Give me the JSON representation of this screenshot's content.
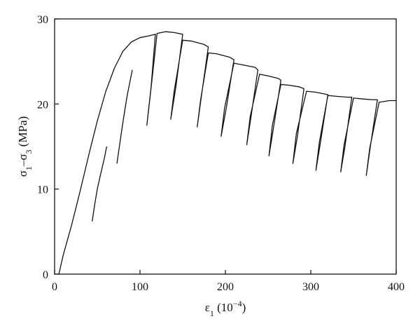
{
  "chart_data": {
    "type": "line",
    "title": "",
    "xlabel": "ε1 (10^-4)",
    "ylabel": "σ1–σ3 (MPa)",
    "xlabel_parts": {
      "main": "ε",
      "sub": "1",
      "unit_open": " (10",
      "sup": "−4",
      "unit_close": ")"
    },
    "ylabel_parts": {
      "a": "σ",
      "a_sub": "1",
      "dash": "–",
      "b": "σ",
      "b_sub": "3",
      "unit": " (MPa)"
    },
    "xlim": [
      0,
      400
    ],
    "ylim": [
      0,
      30
    ],
    "xticks": [
      0,
      100,
      200,
      300,
      400
    ],
    "yticks": [
      0,
      10,
      20,
      30
    ],
    "xtick_labels": [
      "0",
      "100",
      "200",
      "300",
      "400"
    ],
    "ytick_labels": [
      "0",
      "10",
      "20",
      "30"
    ],
    "grid": false,
    "legend": "none",
    "colors": {
      "line": "#111111",
      "axis": "#111111",
      "background": "#ffffff"
    },
    "series": [
      {
        "x": [
          5,
          10,
          20,
          30,
          40,
          50,
          60,
          70,
          80,
          90,
          100,
          110,
          118,
          118,
          113,
          108,
          112,
          120,
          130,
          140,
          150,
          150,
          142,
          136,
          140,
          150,
          160,
          175,
          180,
          180,
          172,
          167,
          171,
          180,
          190,
          205,
          210,
          210,
          201,
          195,
          199,
          210,
          220,
          235,
          238,
          238,
          230,
          225,
          229,
          240,
          250,
          262,
          265,
          265,
          256,
          251,
          255,
          265,
          275,
          287,
          292,
          292,
          284,
          279,
          283,
          295,
          305,
          315,
          320,
          320,
          311,
          306,
          310,
          320,
          330,
          343,
          348,
          348,
          340,
          335,
          339,
          350,
          360,
          372,
          378,
          378,
          369,
          365,
          369,
          380,
          392,
          400
        ],
        "y": [
          0,
          2.2,
          5.8,
          9.8,
          14,
          18,
          21.5,
          24.2,
          26.2,
          27.3,
          27.8,
          28,
          28.2,
          28.2,
          22,
          17.5,
          21,
          28.3,
          28.5,
          28.4,
          28.2,
          28.2,
          22,
          18.2,
          21.5,
          27.5,
          27.4,
          27,
          26.7,
          26.7,
          21,
          17.3,
          20.5,
          26,
          25.9,
          25.5,
          25.2,
          25.2,
          19.5,
          16.2,
          19.5,
          24.8,
          24.6,
          24.3,
          24,
          24,
          18.5,
          15.2,
          18.5,
          23.5,
          23.3,
          23,
          22.8,
          22.8,
          17,
          13.9,
          17.5,
          22.3,
          22.2,
          22,
          21.8,
          21.8,
          16,
          13,
          16.5,
          21.5,
          21.4,
          21.2,
          21.1,
          21.1,
          15.3,
          12.2,
          15.5,
          21,
          20.9,
          20.8,
          20.8,
          20.8,
          15,
          12,
          15.2,
          20.7,
          20.6,
          20.5,
          20.5,
          20.5,
          14.5,
          11.6,
          14.8,
          20.2,
          20.4,
          20.4
        ]
      }
    ],
    "loop_branches": [
      {
        "x": [
          44,
          47,
          50,
          54,
          58,
          61
        ],
        "y": [
          6.2,
          8.2,
          10,
          11.8,
          13.5,
          15
        ]
      },
      {
        "x": [
          73,
          77,
          81,
          85,
          89,
          91
        ],
        "y": [
          13,
          15.8,
          18.5,
          21,
          23,
          24
        ]
      }
    ]
  }
}
